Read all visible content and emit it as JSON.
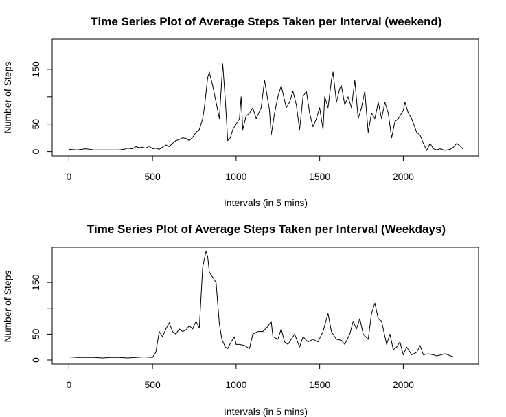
{
  "chart_data": [
    {
      "type": "line",
      "title": "Time Series Plot of Average Steps Taken per Interval (weekend)",
      "xlabel": "Intervals (in 5 mins)",
      "ylabel": "Number of Steps",
      "xlim": [
        -100,
        2450
      ],
      "ylim": [
        -8,
        205
      ],
      "x_ticks": [
        0,
        500,
        1000,
        1500,
        2000
      ],
      "y_ticks": [
        0,
        50,
        100,
        150
      ],
      "y_tick_labels": [
        "0",
        "50",
        "",
        "150"
      ],
      "grid": false,
      "series": [
        {
          "x": [
            0,
            50,
            100,
            150,
            200,
            250,
            300,
            330,
            350,
            380,
            400,
            420,
            440,
            460,
            480,
            500,
            520,
            540,
            560,
            580,
            600,
            620,
            640,
            660,
            680,
            700,
            720,
            740,
            760,
            780,
            800,
            810,
            830,
            840,
            860,
            880,
            900,
            920,
            935,
            950,
            965,
            980,
            1000,
            1020,
            1030,
            1040,
            1060,
            1080,
            1100,
            1120,
            1150,
            1170,
            1200,
            1210,
            1230,
            1250,
            1270,
            1300,
            1320,
            1340,
            1360,
            1380,
            1400,
            1420,
            1440,
            1460,
            1480,
            1500,
            1520,
            1530,
            1550,
            1570,
            1580,
            1600,
            1620,
            1630,
            1650,
            1670,
            1690,
            1710,
            1730,
            1750,
            1770,
            1790,
            1810,
            1830,
            1850,
            1870,
            1890,
            1910,
            1930,
            1950,
            1970,
            2000,
            2010,
            2030,
            2050,
            2080,
            2100,
            2120,
            2140,
            2160,
            2180,
            2200,
            2220,
            2250,
            2280,
            2300,
            2320,
            2340,
            2355
          ],
          "y": [
            4,
            3,
            5,
            3,
            3,
            3,
            3,
            4,
            6,
            5,
            9,
            7,
            8,
            6,
            10,
            5,
            6,
            4,
            8,
            12,
            9,
            15,
            20,
            22,
            25,
            24,
            20,
            26,
            35,
            40,
            60,
            80,
            135,
            145,
            120,
            90,
            60,
            160,
            95,
            20,
            25,
            40,
            50,
            60,
            100,
            40,
            65,
            70,
            80,
            60,
            80,
            130,
            75,
            30,
            70,
            100,
            120,
            80,
            90,
            110,
            85,
            40,
            100,
            110,
            70,
            45,
            60,
            80,
            40,
            100,
            80,
            130,
            145,
            90,
            115,
            120,
            85,
            100,
            80,
            130,
            60,
            80,
            110,
            35,
            70,
            60,
            90,
            60,
            90,
            70,
            25,
            55,
            60,
            75,
            90,
            70,
            60,
            35,
            30,
            15,
            2,
            15,
            5,
            3,
            5,
            2,
            4,
            8,
            15,
            10,
            5
          ]
        }
      ]
    },
    {
      "type": "line",
      "title": "Time Series Plot of Average Steps Taken per Interval (Weekdays)",
      "xlabel": "Intervals (in 5 mins)",
      "ylabel": "Number of Steps",
      "xlim": [
        -100,
        2450
      ],
      "ylim": [
        -8,
        218
      ],
      "x_ticks": [
        0,
        500,
        1000,
        1500,
        2000
      ],
      "y_ticks": [
        0,
        50,
        100,
        150
      ],
      "y_tick_labels": [
        "0",
        "50",
        "",
        "150"
      ],
      "grid": false,
      "series": [
        {
          "x": [
            0,
            50,
            100,
            150,
            200,
            250,
            300,
            350,
            400,
            450,
            500,
            520,
            540,
            560,
            580,
            600,
            620,
            640,
            660,
            680,
            700,
            720,
            740,
            760,
            780,
            800,
            820,
            830,
            840,
            860,
            880,
            900,
            915,
            935,
            950,
            970,
            990,
            1000,
            1020,
            1050,
            1080,
            1100,
            1130,
            1160,
            1190,
            1210,
            1220,
            1250,
            1270,
            1290,
            1310,
            1330,
            1350,
            1380,
            1400,
            1430,
            1460,
            1490,
            1520,
            1550,
            1570,
            1600,
            1630,
            1650,
            1680,
            1700,
            1720,
            1740,
            1760,
            1790,
            1810,
            1830,
            1850,
            1870,
            1900,
            1920,
            1940,
            1960,
            1980,
            2000,
            2020,
            2050,
            2080,
            2100,
            2120,
            2150,
            2180,
            2200,
            2250,
            2300,
            2355
          ],
          "y": [
            6,
            5,
            5,
            5,
            4,
            5,
            5,
            4,
            5,
            6,
            5,
            15,
            55,
            45,
            60,
            72,
            55,
            50,
            60,
            55,
            58,
            66,
            60,
            75,
            62,
            180,
            210,
            200,
            170,
            160,
            150,
            70,
            40,
            25,
            22,
            35,
            45,
            30,
            30,
            28,
            22,
            50,
            55,
            55,
            65,
            75,
            45,
            40,
            60,
            35,
            30,
            40,
            50,
            25,
            45,
            35,
            40,
            35,
            55,
            90,
            55,
            40,
            38,
            30,
            50,
            75,
            60,
            80,
            50,
            40,
            90,
            110,
            80,
            75,
            30,
            50,
            20,
            25,
            35,
            10,
            25,
            10,
            15,
            28,
            10,
            12,
            10,
            8,
            12,
            6,
            6
          ]
        }
      ]
    }
  ]
}
